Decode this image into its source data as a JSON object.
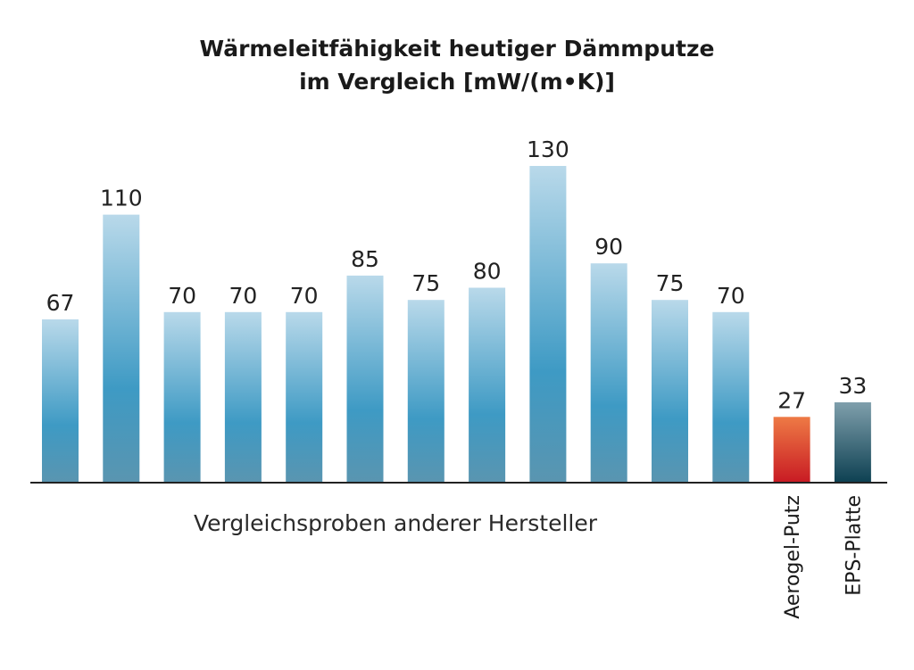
{
  "chart_data": {
    "type": "bar",
    "title_line1": "Wärmeleitfähigkeit heutiger Dämmputze",
    "title_line2": "im Vergleich [mW/(m•K)]",
    "categories": [
      "",
      "",
      "",
      "",
      "",
      "",
      "",
      "",
      "",
      "",
      "",
      "",
      "Aerogel-Putz",
      "EPS-Platte"
    ],
    "values": [
      67,
      110,
      70,
      70,
      70,
      85,
      75,
      80,
      130,
      90,
      75,
      70,
      27,
      33
    ],
    "group_label": "Vergleichsproben anderer Hersteller",
    "ylim": [
      0,
      130
    ],
    "grid": false,
    "colors": {
      "comparison": [
        "#b9d9ea",
        "#3e9ac4",
        "#5a95b0"
      ],
      "aerogel": [
        "#ee7a45",
        "#c81a23"
      ],
      "eps": [
        "#7f9fac",
        "#0d4052"
      ],
      "baseline": "#222222"
    }
  }
}
